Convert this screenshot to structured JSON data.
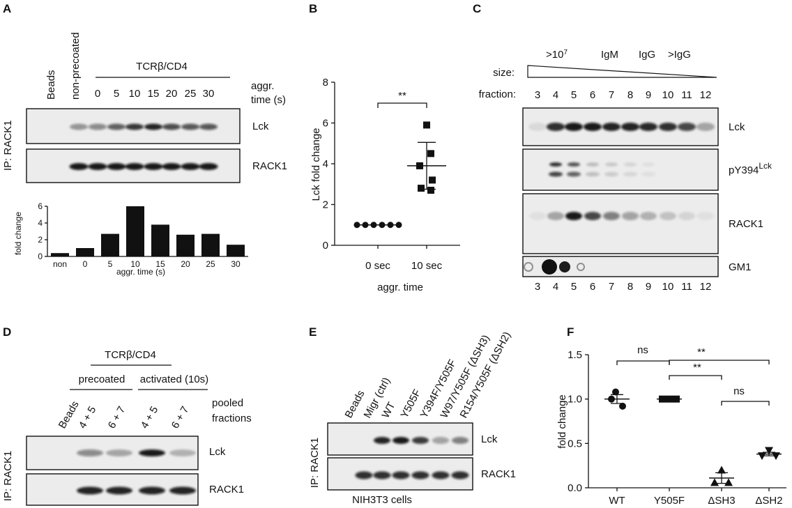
{
  "panels": {
    "A": {
      "label": "A",
      "ip_label": "IP: RACK1",
      "lanes": [
        "Beads",
        "non-precoated"
      ],
      "group_label": "TCRβ/CD4",
      "times": [
        "0",
        "5",
        "10",
        "15",
        "20",
        "25",
        "30"
      ],
      "time_label_1": "aggr.",
      "time_label_2": "time (s)",
      "blots": [
        "Lck",
        "RACK1"
      ],
      "bar_ylabel": "fold change",
      "bar_xlabel": "aggr. time (s)",
      "bar_yticks": [
        "0",
        "2",
        "4",
        "6"
      ]
    },
    "B": {
      "label": "B",
      "ylabel": "Lck fold change",
      "xlabel": "aggr. time",
      "yticks": [
        "0",
        "2",
        "4",
        "6",
        "8"
      ],
      "significance": "**"
    },
    "C": {
      "label": "C",
      "size_classes": [
        "IgM",
        "IgG",
        ">IgG"
      ],
      "size_big_base": ">10",
      "size_big_exp": "7",
      "size_label": "size:",
      "fraction_label": "fraction:",
      "fractions": [
        "3",
        "4",
        "5",
        "6",
        "7",
        "8",
        "9",
        "10",
        "11",
        "12"
      ],
      "blots": [
        "Lck",
        "RACK1",
        "GM1"
      ],
      "pY_base": "pY394",
      "pY_sup": "Lck"
    },
    "D": {
      "label": "D",
      "ip_label": "IP: RACK1",
      "group_label": "TCRβ/CD4",
      "sub_precoated": "precoated",
      "sub_activated": "activated (10s)",
      "lanes": [
        "Beads",
        "4 + 5",
        "6 + 7",
        "4 + 5",
        "6 + 7"
      ],
      "pooled_1": "pooled",
      "pooled_2": "fractions",
      "blots": [
        "Lck",
        "RACK1"
      ]
    },
    "E": {
      "label": "E",
      "ip_label": "IP: RACK1",
      "lanes": [
        "Beads",
        "Migr (ctrl)",
        "WT",
        "Y505F",
        "Y394F/Y505F",
        "W97/Y505F (ΔSH3)",
        "R154/Y505F (ΔSH2)"
      ],
      "blots": [
        "Lck",
        "RACK1"
      ],
      "cells": "NIH3T3 cells"
    },
    "F": {
      "label": "F",
      "ylabel": "fold change",
      "yticks": [
        "0.0",
        "0.5",
        "1.0",
        "1.5"
      ],
      "sig_ns_1": "ns",
      "sig_ns_2": "ns",
      "sig_star_1": "**",
      "sig_star_2": "**"
    }
  },
  "chart_data": [
    {
      "type": "bar",
      "panel": "A",
      "categories": [
        "non",
        "0",
        "5",
        "10",
        "15",
        "20",
        "25",
        "30"
      ],
      "values": [
        0.4,
        1.0,
        2.7,
        6.0,
        3.8,
        2.6,
        2.7,
        1.4
      ],
      "xlabel": "aggr. time (s)",
      "ylabel": "fold change",
      "ylim": [
        0,
        6
      ]
    },
    {
      "type": "scatter",
      "panel": "B",
      "categories": [
        "0 sec",
        "10 sec"
      ],
      "series": [
        {
          "category": "0 sec",
          "marker": "circle",
          "values": [
            1,
            1,
            1,
            1,
            1,
            1
          ],
          "mean": 1.0
        },
        {
          "category": "10 sec",
          "marker": "square",
          "values": [
            5.9,
            4.5,
            3.9,
            3.2,
            2.8,
            2.7
          ],
          "mean": 3.9,
          "sd": 1.15
        }
      ],
      "xlabel": "aggr. time",
      "ylabel": "Lck fold change",
      "ylim": [
        0,
        8
      ]
    },
    {
      "type": "scatter",
      "panel": "F",
      "categories": [
        "WT",
        "Y505F",
        "ΔSH3",
        "ΔSH2"
      ],
      "series": [
        {
          "category": "WT",
          "marker": "circle",
          "values": [
            1.08,
            1.0,
            0.92
          ],
          "mean": 1.0,
          "sem": 0.05
        },
        {
          "category": "Y505F",
          "marker": "square",
          "values": [
            1.0,
            1.0,
            1.0
          ],
          "mean": 1.0,
          "sem": 0.0
        },
        {
          "category": "ΔSH3",
          "marker": "triangle-up",
          "values": [
            0.2,
            0.06,
            0.06
          ],
          "mean": 0.11,
          "sem": 0.06
        },
        {
          "category": "ΔSH2",
          "marker": "triangle-down",
          "values": [
            0.42,
            0.36,
            0.36
          ],
          "mean": 0.38,
          "sem": 0.02
        }
      ],
      "ylabel": "fold change",
      "ylim": [
        0,
        1.5
      ]
    }
  ]
}
